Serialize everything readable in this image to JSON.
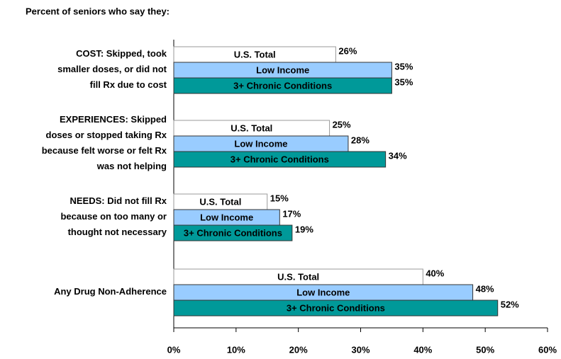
{
  "chart_data": {
    "type": "bar",
    "orientation": "horizontal",
    "title": "Percent of seniors who say they:",
    "categories": [
      "COST:  Skipped, took\nsmaller doses, or did not\nfill Rx due to cost",
      "EXPERIENCES:  Skipped\ndoses or stopped taking Rx\nbecause felt worse or felt Rx\nwas not helping",
      "NEEDS:  Did not fill Rx\nbecause on too many or\nthought not necessary",
      "Any Drug Non-Adherence"
    ],
    "series": [
      {
        "name": "U.S. Total",
        "color": "#ffffff",
        "values": [
          26,
          25,
          15,
          40
        ],
        "value_labels": [
          "26%",
          "25%",
          "15%",
          "40%"
        ]
      },
      {
        "name": "Low Income",
        "color": "#99ccff",
        "values": [
          35,
          28,
          17,
          48
        ],
        "value_labels": [
          "35%",
          "28%",
          "17%",
          "48%"
        ]
      },
      {
        "name": "3+ Chronic Conditions",
        "color": "#009999",
        "values": [
          35,
          34,
          19,
          52
        ],
        "value_labels": [
          "35%",
          "34%",
          "19%",
          "52%"
        ]
      }
    ],
    "xlim": [
      0,
      60
    ],
    "xticks": [
      {
        "value": 0,
        "label": "0%"
      },
      {
        "value": 10,
        "label": "10%"
      },
      {
        "value": 20,
        "label": "20%"
      },
      {
        "value": 30,
        "label": "30%"
      },
      {
        "value": 40,
        "label": "40%"
      },
      {
        "value": 50,
        "label": "50%"
      },
      {
        "value": 60,
        "label": "60%"
      }
    ],
    "grid": false
  }
}
